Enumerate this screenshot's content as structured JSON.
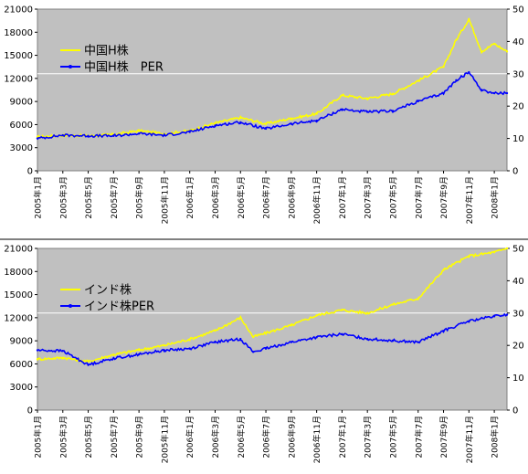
{
  "colors": {
    "plot_bg": "#c0c0c0",
    "price_line": "#ffff00",
    "per_line": "#0000ff",
    "ref_line": "#ffffff",
    "divider": "#000000",
    "text": "#000000"
  },
  "x_tick_labels": [
    "2005年1月",
    "2005年3月",
    "2005年5月",
    "2005年7月",
    "2005年9月",
    "2005年11月",
    "2006年1月",
    "2006年3月",
    "2006年5月",
    "2006年7月",
    "2006年9月",
    "2006年11月",
    "2007年1月",
    "2007年3月",
    "2007年5月",
    "2007年7月",
    "2007年9月",
    "2007年11月",
    "2008年1月"
  ],
  "chart_data": [
    {
      "type": "line",
      "x": [
        "2005-01",
        "2005-03",
        "2005-05",
        "2005-07",
        "2005-09",
        "2005-11",
        "2006-01",
        "2006-03",
        "2006-05",
        "2006-07",
        "2006-09",
        "2006-11",
        "2007-01",
        "2007-03",
        "2007-05",
        "2007-07",
        "2007-09",
        "2007-10",
        "2007-11",
        "2007-12",
        "2008-01",
        "2008-02"
      ],
      "xlim": [
        "2005-01",
        "2008-02"
      ],
      "y_left": {
        "lim": [
          0,
          21000
        ],
        "ticks": [
          0,
          3000,
          6000,
          9000,
          12000,
          15000,
          18000,
          21000
        ],
        "tick_labels": [
          "0",
          "3000",
          "6000",
          "9000",
          "12000",
          "15000",
          "18000",
          "21000"
        ]
      },
      "y_right": {
        "lim": [
          0,
          50
        ],
        "ticks": [
          0,
          10,
          20,
          30,
          40,
          50
        ],
        "tick_labels": [
          "0",
          "10",
          "20",
          "30",
          "40",
          "50"
        ]
      },
      "reference_line_right": 30,
      "legend_position": "top-left",
      "series": [
        {
          "name": "中国H株",
          "axis": "left",
          "color": "#ffff00",
          "values": [
            4400,
            4600,
            4550,
            4700,
            5200,
            4800,
            5200,
            6200,
            6900,
            6100,
            6800,
            7400,
            9800,
            9400,
            10000,
            11700,
            13500,
            17000,
            19700,
            15500,
            16500,
            15500
          ]
        },
        {
          "name": "中国H株　PER",
          "axis": "right",
          "color": "#0000ff",
          "values": [
            10,
            11,
            10.8,
            10.8,
            11.5,
            11,
            12,
            14,
            15,
            13,
            14.5,
            15.5,
            19,
            18.2,
            18.5,
            21.5,
            24,
            28,
            30.5,
            25,
            24,
            24
          ]
        }
      ]
    },
    {
      "type": "line",
      "x": [
        "2005-01",
        "2005-03",
        "2005-05",
        "2005-07",
        "2005-09",
        "2005-11",
        "2006-01",
        "2006-03",
        "2006-05",
        "2006-06",
        "2006-07",
        "2006-09",
        "2006-11",
        "2007-01",
        "2007-03",
        "2007-05",
        "2007-07",
        "2007-09",
        "2007-11",
        "2008-01",
        "2008-02"
      ],
      "xlim": [
        "2005-01",
        "2008-02"
      ],
      "y_left": {
        "lim": [
          0,
          21000
        ],
        "ticks": [
          0,
          3000,
          6000,
          9000,
          12000,
          15000,
          18000,
          21000
        ],
        "tick_labels": [
          "0",
          "3000",
          "6000",
          "9000",
          "12000",
          "15000",
          "18000",
          "21000"
        ]
      },
      "y_right": {
        "lim": [
          0,
          50
        ],
        "ticks": [
          0,
          10,
          20,
          30,
          40,
          50
        ],
        "tick_labels": [
          "0",
          "10",
          "20",
          "30",
          "40",
          "50"
        ]
      },
      "reference_line_right": 30,
      "legend_position": "top-left",
      "series": [
        {
          "name": "インド株",
          "axis": "left",
          "color": "#ffff00",
          "values": [
            6600,
            6800,
            6300,
            7200,
            7800,
            8400,
            9200,
            10300,
            12000,
            9500,
            10000,
            11000,
            12300,
            13000,
            12600,
            13700,
            14500,
            18200,
            20000,
            20500,
            21000
          ]
        },
        {
          "name": "インド株PER",
          "axis": "right",
          "color": "#0000ff",
          "values": [
            18.5,
            18.3,
            14,
            16,
            17.2,
            18.5,
            19,
            21,
            22,
            18,
            19,
            21,
            22.5,
            23.5,
            22,
            21.5,
            21,
            24.5,
            27.5,
            29,
            29.5
          ]
        }
      ]
    }
  ]
}
